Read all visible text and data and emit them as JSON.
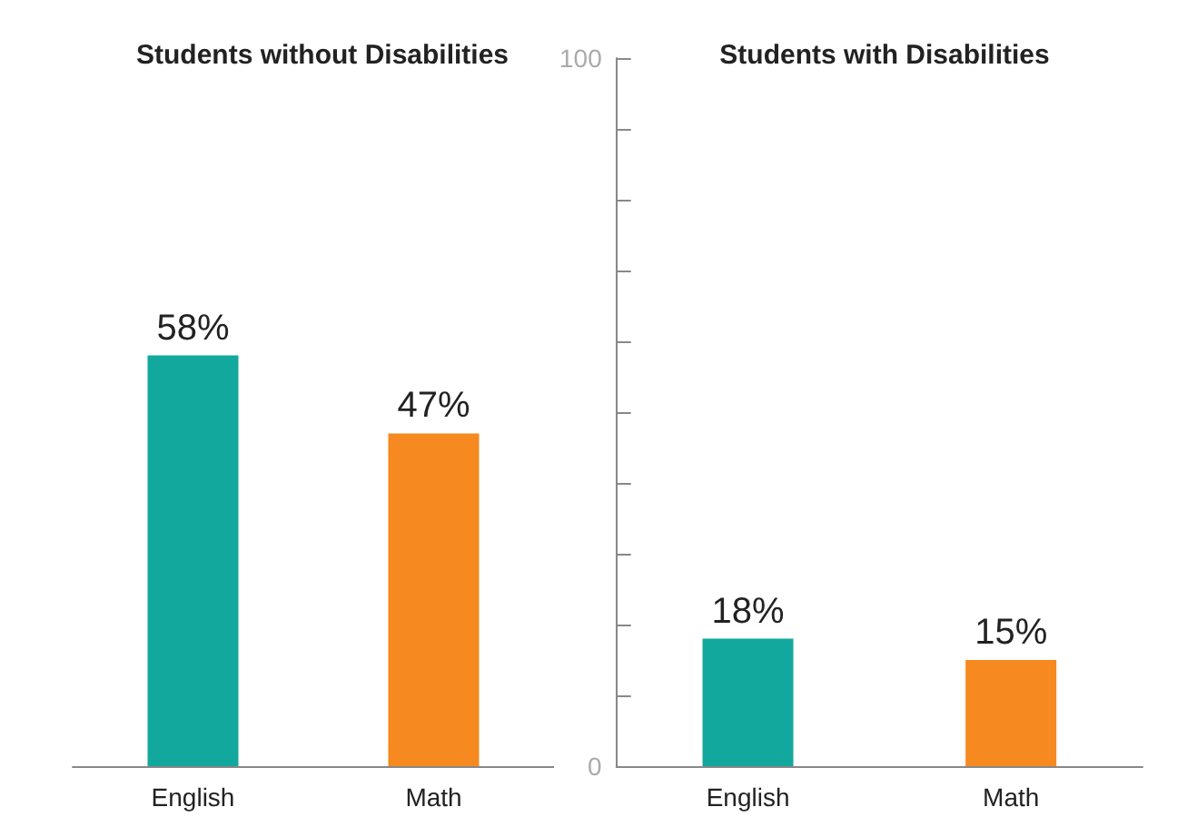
{
  "chart_data": [
    {
      "type": "bar",
      "title": "Students without Disabilities",
      "categories": [
        "English",
        "Math"
      ],
      "values": [
        58,
        47
      ],
      "colors": [
        "#13a89e",
        "#f6891f"
      ],
      "value_labels": [
        "58%",
        "47%"
      ],
      "ylim": [
        0,
        100
      ],
      "tick_labels": "x"
    },
    {
      "type": "bar",
      "title": "Students with Disabilities",
      "categories": [
        "English",
        "Math"
      ],
      "values": [
        18,
        15
      ],
      "colors": [
        "#13a89e",
        "#f6891f"
      ],
      "value_labels": [
        "18%",
        "15%"
      ],
      "ylim": [
        0,
        100
      ],
      "yticks": [
        0,
        {
          "value": 10,
          "label": null
        },
        {
          "value": 20,
          "label": null
        },
        {
          "value": 30,
          "label": null
        },
        {
          "value": 40,
          "label": null
        },
        {
          "value": 50,
          "label": null
        },
        {
          "value": 60,
          "label": null
        },
        {
          "value": 70,
          "label": null
        },
        {
          "value": 80,
          "label": null
        },
        {
          "value": 90,
          "label": null
        },
        100
      ]
    }
  ]
}
